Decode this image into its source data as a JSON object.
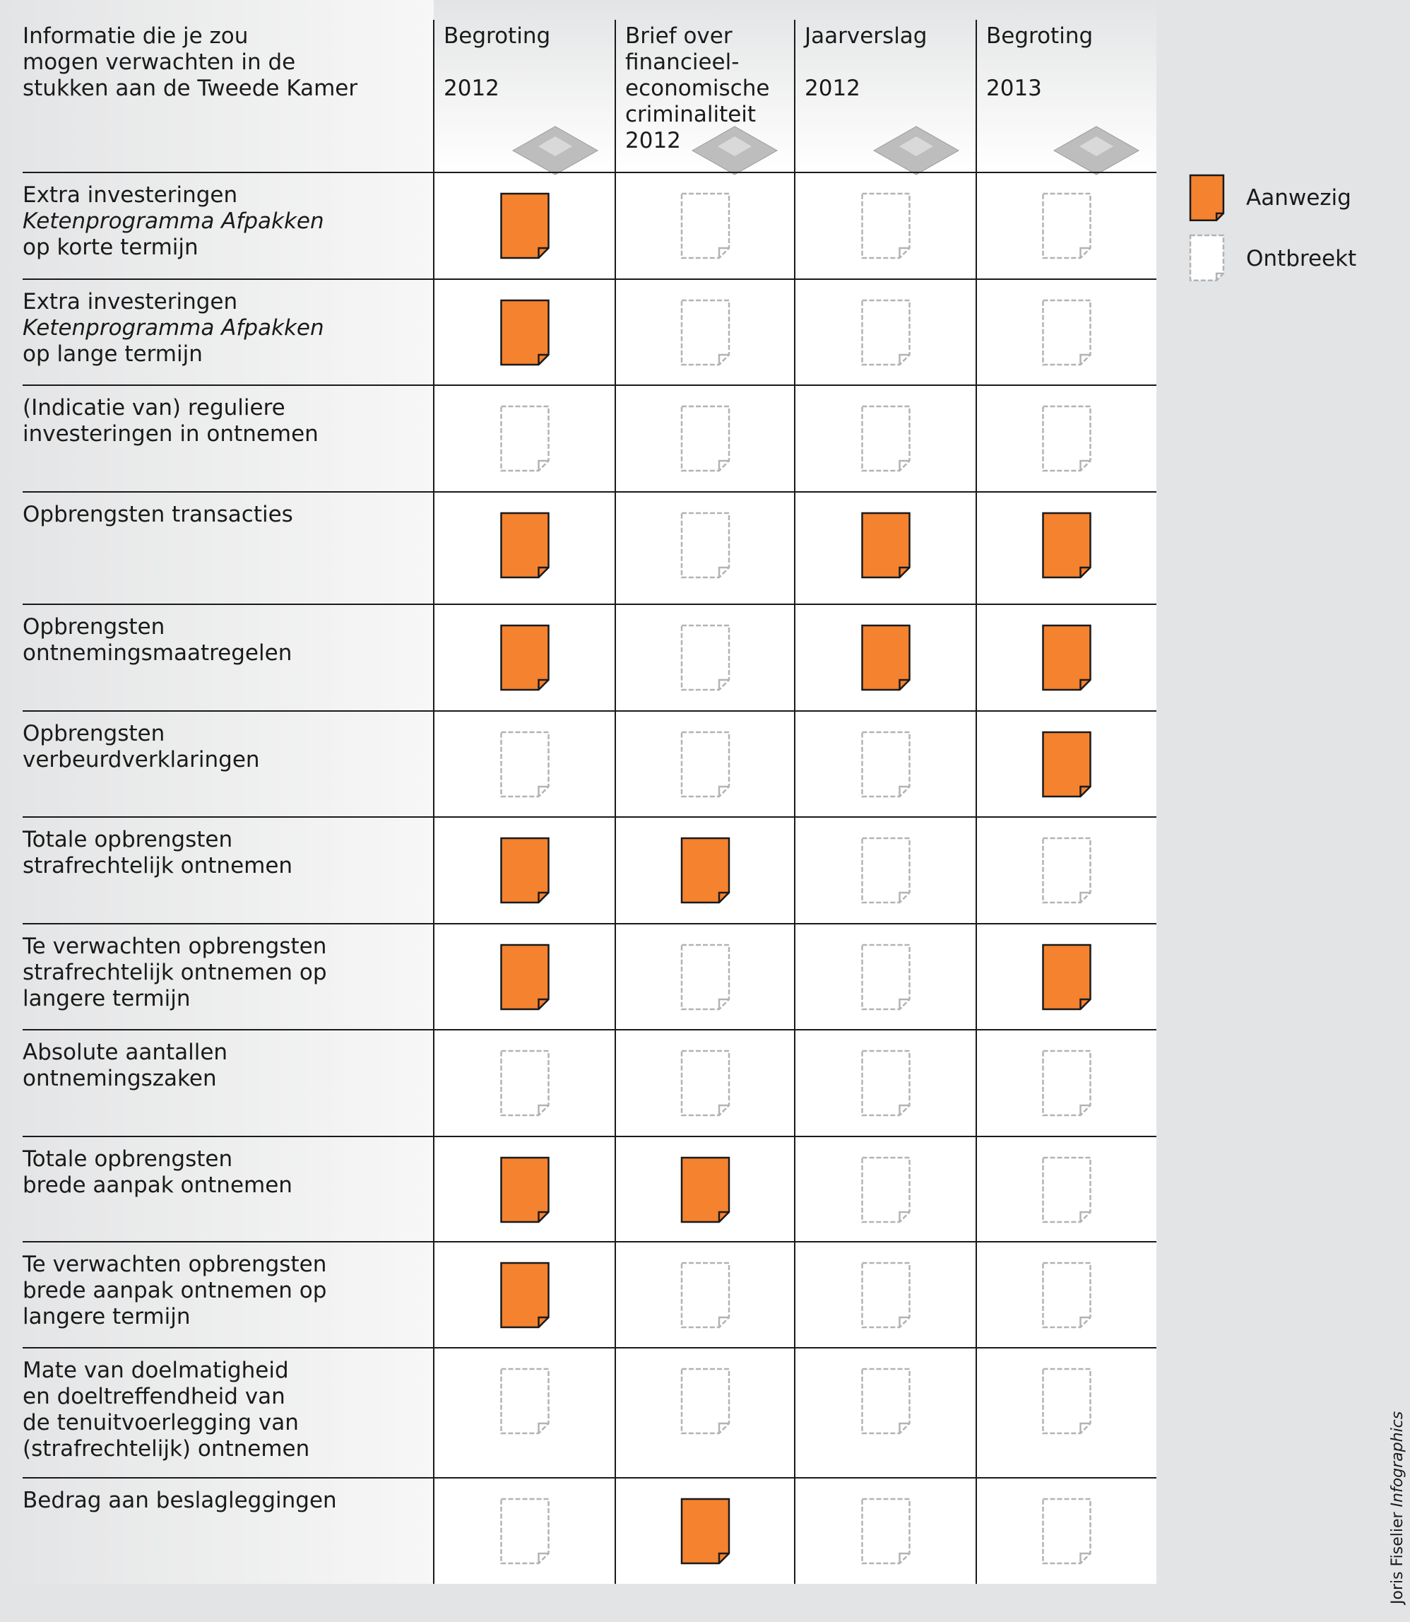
{
  "table": {
    "header": {
      "label": [
        "Informatie die je zou",
        "mogen verwachten in de",
        "stukken aan de Tweede Kamer"
      ],
      "columns": [
        [
          "Begroting",
          "",
          "2012"
        ],
        [
          "Brief over",
          "financieel-",
          "economische",
          "criminaliteit",
          "2012"
        ],
        [
          "Jaarverslag",
          "",
          "2012"
        ],
        [
          "Begroting",
          "",
          "2013"
        ]
      ]
    },
    "rows": [
      {
        "label": [
          "Extra investeringen",
          {
            "text": "Ketenprogramma Afpakken",
            "style": "italic"
          },
          "op korte termijn"
        ],
        "present": [
          true,
          false,
          false,
          false
        ]
      },
      {
        "label": [
          "Extra investeringen",
          {
            "text": "Ketenprogramma Afpakken",
            "style": "italic"
          },
          "op lange termijn"
        ],
        "present": [
          true,
          false,
          false,
          false
        ]
      },
      {
        "label": [
          "(Indicatie van) reguliere",
          "investeringen in ontnemen"
        ],
        "present": [
          false,
          false,
          false,
          false
        ]
      },
      {
        "label": [
          "Opbrengsten transacties"
        ],
        "present": [
          true,
          false,
          true,
          true
        ]
      },
      {
        "label": [
          "Opbrengsten",
          "ontnemingsmaatregelen"
        ],
        "present": [
          true,
          false,
          true,
          true
        ]
      },
      {
        "label": [
          "Opbrengsten",
          "verbeurdverklaringen"
        ],
        "present": [
          false,
          false,
          false,
          true
        ]
      },
      {
        "label": [
          "Totale opbrengsten",
          "strafrechtelijk ontnemen"
        ],
        "present": [
          true,
          true,
          false,
          false
        ]
      },
      {
        "label": [
          "Te verwachten opbrengsten",
          "strafrechtelijk ontnemen op",
          "langere termijn"
        ],
        "present": [
          true,
          false,
          false,
          true
        ]
      },
      {
        "label": [
          "Absolute aantallen",
          "ontnemingszaken"
        ],
        "present": [
          false,
          false,
          false,
          false
        ]
      },
      {
        "label": [
          "Totale opbrengsten",
          "brede aanpak ontnemen"
        ],
        "present": [
          true,
          true,
          false,
          false
        ]
      },
      {
        "label": [
          "Te verwachten opbrengsten",
          "brede aanpak ontnemen op",
          "langere termijn"
        ],
        "present": [
          true,
          false,
          false,
          false
        ]
      },
      {
        "label": [
          "Mate van doelmatigheid",
          "en doeltreffendheid van",
          "de tenuitvoerlegging van",
          "(strafrechtelijk) ontnemen"
        ],
        "present": [
          false,
          false,
          false,
          false
        ]
      },
      {
        "label": [
          "Bedrag aan beslagleggingen"
        ],
        "present": [
          false,
          true,
          false,
          false
        ]
      }
    ]
  },
  "legend": {
    "present": "Aanwezig",
    "absent": "Ontbreekt",
    "present_color": "#f5822f",
    "absent_color": "#b3b3b3"
  },
  "credit": {
    "name": "Joris Fiselier ",
    "label": "Infographics"
  }
}
